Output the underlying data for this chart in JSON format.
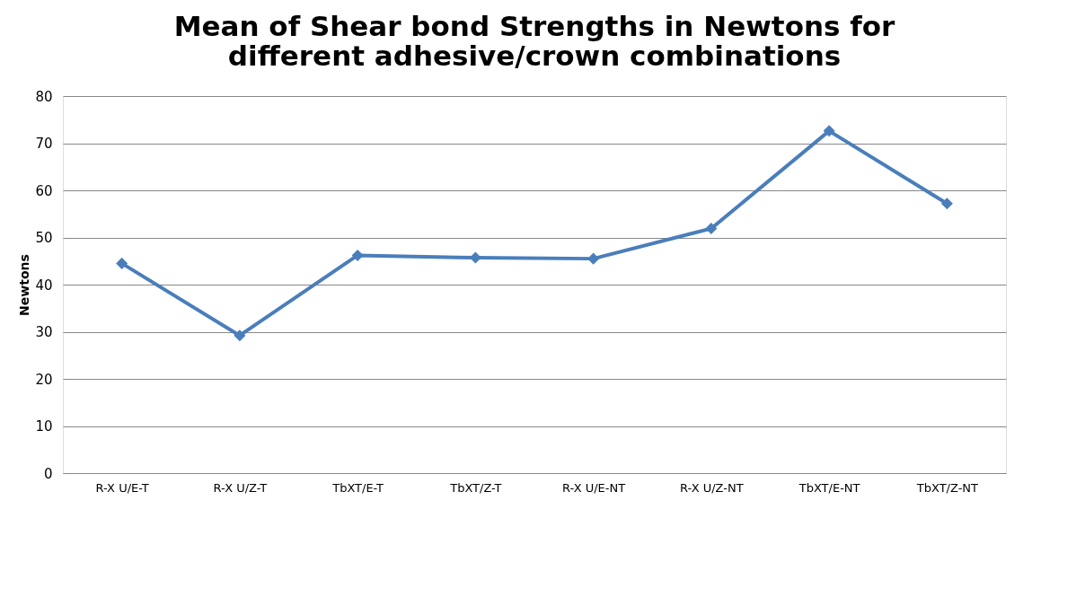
{
  "chart_data": {
    "type": "line",
    "title": "Mean of Shear bond Strengths in Newtons for different adhesive/crown combinations",
    "ylabel": "Newtons",
    "categories": [
      "R-X U/E-T",
      "R-X U/Z-T",
      "TbXT/E-T",
      "TbXT/Z-T",
      "R-X U/E-NT",
      "R-X U/Z-NT",
      "TbXT/E-NT",
      "TbXT/Z-NT"
    ],
    "series": [
      {
        "color": "#4a7ebb",
        "values": [
          44.5,
          29.2,
          46.2,
          45.7,
          45.5,
          51.9,
          72.6,
          57.2
        ]
      }
    ],
    "ylim": [
      0,
      80
    ],
    "yticks": [
      0,
      10,
      20,
      30,
      40,
      50,
      60,
      70,
      80
    ],
    "grid": "y",
    "marker": "diamond",
    "line_style": "solid"
  }
}
